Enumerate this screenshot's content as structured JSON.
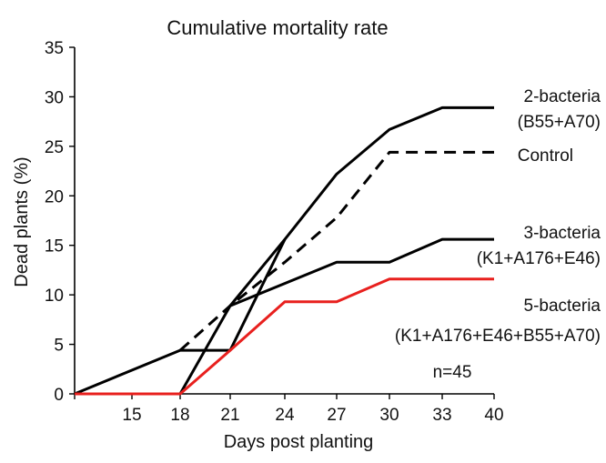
{
  "chart_data": {
    "type": "line",
    "title": "Cumulative mortality rate",
    "xlabel": "Days post planting",
    "ylabel": "Dead plants (%)",
    "categories": [
      "12",
      "15",
      "18",
      "21",
      "24",
      "27",
      "30",
      "33",
      "40"
    ],
    "x_tick_labels": [
      "15",
      "18",
      "21",
      "24",
      "27",
      "30",
      "33",
      "40"
    ],
    "y_ticks": [
      0,
      5,
      10,
      15,
      20,
      25,
      30,
      35
    ],
    "ylim": [
      0,
      35
    ],
    "grid": false,
    "annotation": "n=45",
    "series": [
      {
        "label_lines": [
          "2-bacteria",
          "(B55+A70)"
        ],
        "color": "#000000",
        "dash": "solid",
        "points": [
          [
            18,
            0
          ],
          [
            21,
            8.9
          ],
          [
            24,
            15.6
          ],
          [
            27,
            22.2
          ],
          [
            30,
            26.7
          ],
          [
            33,
            28.9
          ],
          [
            40,
            28.9
          ]
        ]
      },
      {
        "label_lines": [
          "Control"
        ],
        "color": "#000000",
        "dash": "dashed",
        "points": [
          [
            18,
            4.4
          ],
          [
            21,
            8.9
          ],
          [
            24,
            13.3
          ],
          [
            27,
            17.8
          ],
          [
            30,
            24.4
          ],
          [
            33,
            24.4
          ],
          [
            40,
            24.4
          ]
        ]
      },
      {
        "label_lines": [
          "3-bacteria",
          "(K1+A176+E46)"
        ],
        "color": "#000000",
        "dash": "solid",
        "points": [
          [
            12,
            0
          ],
          [
            18,
            4.4
          ],
          [
            21,
            4.4
          ],
          [
            24,
            15.6
          ]
        ]
      },
      {
        "label_lines": [],
        "color": "#000000",
        "dash": "solid",
        "points": [
          [
            21,
            8.9
          ],
          [
            27,
            13.3
          ],
          [
            30,
            13.3
          ],
          [
            33,
            15.6
          ],
          [
            40,
            15.6
          ]
        ]
      },
      {
        "label_lines": [
          "5-bacteria",
          "(K1+A176+E46+B55+A70)"
        ],
        "color": "#e8201e",
        "dash": "solid",
        "points": [
          [
            12,
            0
          ],
          [
            18,
            0
          ],
          [
            21,
            4.4
          ],
          [
            24,
            9.3
          ],
          [
            27,
            9.3
          ],
          [
            30,
            11.6
          ],
          [
            33,
            11.6
          ],
          [
            40,
            11.6
          ]
        ]
      }
    ]
  }
}
